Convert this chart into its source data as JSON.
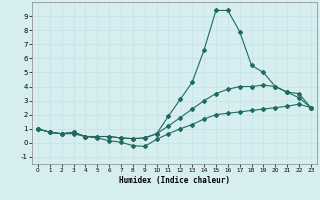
{
  "xlabel": "Humidex (Indice chaleur)",
  "bg_color": "#d6eef0",
  "grid_color": "#c8e4e8",
  "line_color": "#1e6b5e",
  "xlim": [
    -0.5,
    23.5
  ],
  "ylim": [
    -1.5,
    10.0
  ],
  "xticks": [
    0,
    1,
    2,
    3,
    4,
    5,
    6,
    7,
    8,
    9,
    10,
    11,
    12,
    13,
    14,
    15,
    16,
    17,
    18,
    19,
    20,
    21,
    22,
    23
  ],
  "yticks": [
    -1,
    0,
    1,
    2,
    3,
    4,
    5,
    6,
    7,
    8,
    9
  ],
  "line1_x": [
    0,
    1,
    2,
    3,
    4,
    5,
    6,
    7,
    8,
    9,
    10,
    11,
    12,
    13,
    14,
    15,
    16,
    17,
    18,
    19,
    20,
    21,
    22,
    23
  ],
  "line1_y": [
    1.0,
    0.75,
    0.65,
    0.75,
    0.45,
    0.45,
    0.45,
    0.35,
    0.3,
    0.35,
    0.65,
    1.9,
    3.1,
    4.3,
    6.6,
    9.4,
    9.4,
    7.9,
    5.5,
    5.0,
    4.0,
    3.6,
    3.5,
    2.5
  ],
  "line2_x": [
    0,
    1,
    2,
    3,
    4,
    5,
    6,
    7,
    8,
    9,
    10,
    11,
    12,
    13,
    14,
    15,
    16,
    17,
    18,
    19,
    20,
    21,
    22,
    23
  ],
  "line2_y": [
    1.0,
    0.75,
    0.65,
    0.75,
    0.45,
    0.45,
    0.45,
    0.35,
    0.3,
    0.35,
    0.65,
    1.2,
    1.8,
    2.4,
    3.0,
    3.5,
    3.8,
    4.0,
    4.0,
    4.1,
    4.0,
    3.6,
    3.2,
    2.5
  ],
  "line3_x": [
    0,
    1,
    2,
    3,
    4,
    5,
    6,
    7,
    8,
    9,
    10,
    11,
    12,
    13,
    14,
    15,
    16,
    17,
    18,
    19,
    20,
    21,
    22,
    23
  ],
  "line3_y": [
    1.0,
    0.75,
    0.65,
    0.65,
    0.45,
    0.35,
    0.15,
    0.05,
    -0.2,
    -0.25,
    0.25,
    0.65,
    1.0,
    1.3,
    1.7,
    2.0,
    2.1,
    2.2,
    2.3,
    2.4,
    2.5,
    2.6,
    2.75,
    2.5
  ]
}
